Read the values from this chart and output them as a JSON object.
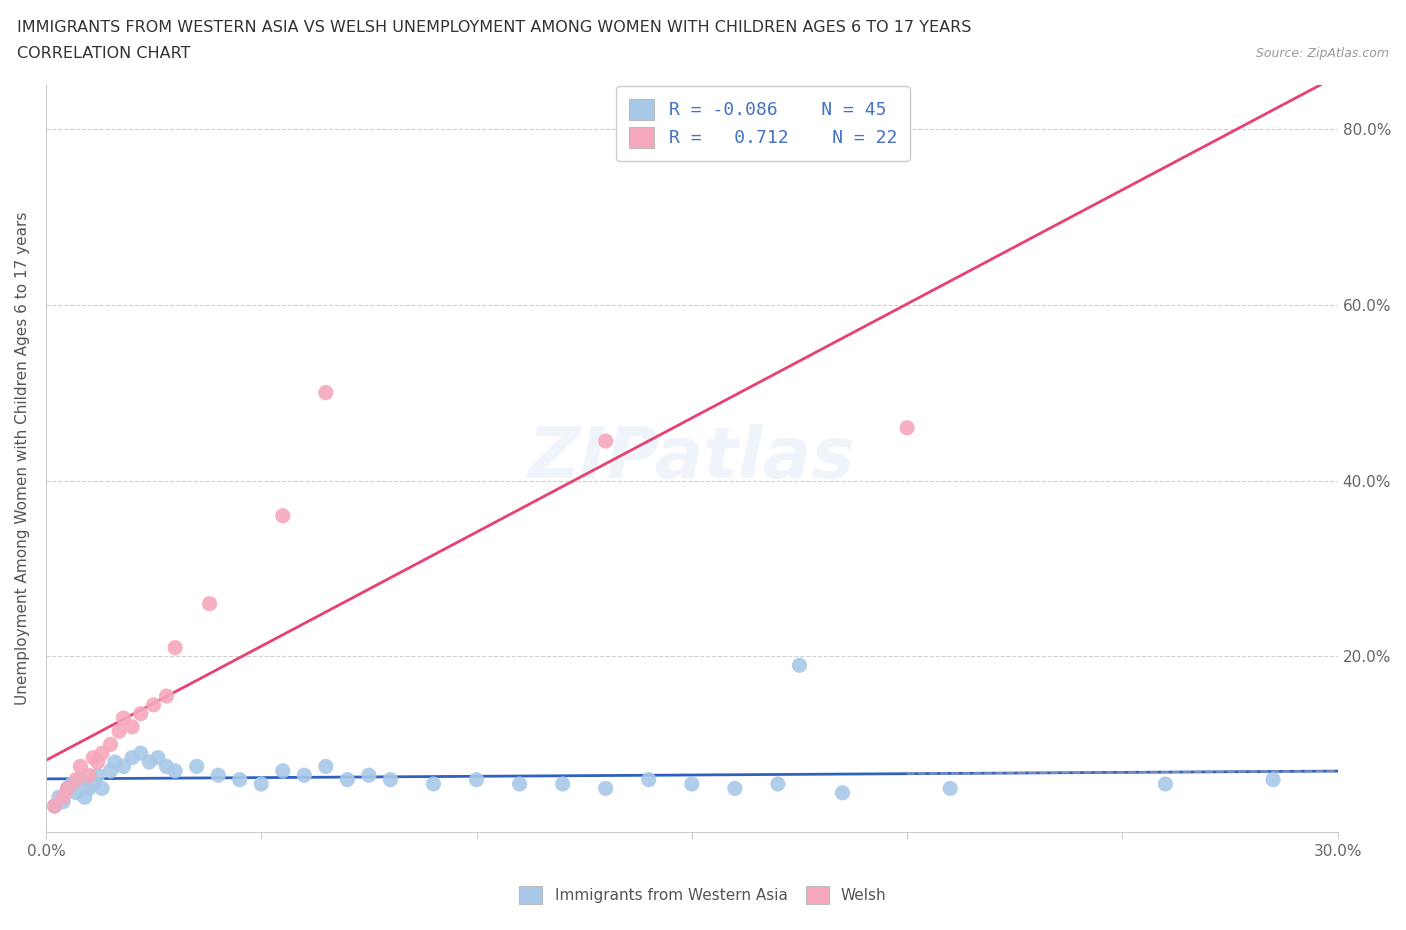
{
  "title": "IMMIGRANTS FROM WESTERN ASIA VS WELSH UNEMPLOYMENT AMONG WOMEN WITH CHILDREN AGES 6 TO 17 YEARS",
  "subtitle": "CORRELATION CHART",
  "source": "Source: ZipAtlas.com",
  "ylabel": "Unemployment Among Women with Children Ages 6 to 17 years",
  "xlim": [
    0.0,
    0.3
  ],
  "ylim": [
    0.0,
    0.85
  ],
  "blue_r": "-0.086",
  "blue_n": "45",
  "pink_r": "0.712",
  "pink_n": "22",
  "blue_color": "#a8c8e8",
  "pink_color": "#f5a8bc",
  "blue_line_color": "#3060c0",
  "pink_line_color": "#e84070",
  "blue_scatter": [
    [
      0.002,
      0.03
    ],
    [
      0.003,
      0.04
    ],
    [
      0.004,
      0.035
    ],
    [
      0.005,
      0.05
    ],
    [
      0.006,
      0.055
    ],
    [
      0.007,
      0.045
    ],
    [
      0.008,
      0.06
    ],
    [
      0.009,
      0.04
    ],
    [
      0.01,
      0.05
    ],
    [
      0.011,
      0.055
    ],
    [
      0.012,
      0.065
    ],
    [
      0.013,
      0.05
    ],
    [
      0.015,
      0.07
    ],
    [
      0.016,
      0.08
    ],
    [
      0.018,
      0.075
    ],
    [
      0.02,
      0.085
    ],
    [
      0.022,
      0.09
    ],
    [
      0.024,
      0.08
    ],
    [
      0.026,
      0.085
    ],
    [
      0.028,
      0.075
    ],
    [
      0.03,
      0.07
    ],
    [
      0.035,
      0.075
    ],
    [
      0.04,
      0.065
    ],
    [
      0.045,
      0.06
    ],
    [
      0.05,
      0.055
    ],
    [
      0.055,
      0.07
    ],
    [
      0.06,
      0.065
    ],
    [
      0.065,
      0.075
    ],
    [
      0.07,
      0.06
    ],
    [
      0.075,
      0.065
    ],
    [
      0.08,
      0.06
    ],
    [
      0.09,
      0.055
    ],
    [
      0.1,
      0.06
    ],
    [
      0.11,
      0.055
    ],
    [
      0.12,
      0.055
    ],
    [
      0.13,
      0.05
    ],
    [
      0.14,
      0.06
    ],
    [
      0.15,
      0.055
    ],
    [
      0.16,
      0.05
    ],
    [
      0.17,
      0.055
    ],
    [
      0.175,
      0.19
    ],
    [
      0.185,
      0.045
    ],
    [
      0.21,
      0.05
    ],
    [
      0.26,
      0.055
    ],
    [
      0.285,
      0.06
    ]
  ],
  "pink_scatter": [
    [
      0.002,
      0.03
    ],
    [
      0.004,
      0.04
    ],
    [
      0.005,
      0.05
    ],
    [
      0.007,
      0.06
    ],
    [
      0.008,
      0.075
    ],
    [
      0.01,
      0.065
    ],
    [
      0.011,
      0.085
    ],
    [
      0.012,
      0.08
    ],
    [
      0.013,
      0.09
    ],
    [
      0.015,
      0.1
    ],
    [
      0.017,
      0.115
    ],
    [
      0.018,
      0.13
    ],
    [
      0.02,
      0.12
    ],
    [
      0.022,
      0.135
    ],
    [
      0.025,
      0.145
    ],
    [
      0.028,
      0.155
    ],
    [
      0.03,
      0.21
    ],
    [
      0.038,
      0.26
    ],
    [
      0.055,
      0.36
    ],
    [
      0.065,
      0.5
    ],
    [
      0.13,
      0.445
    ],
    [
      0.2,
      0.46
    ]
  ],
  "watermark": "ZIPatlas"
}
